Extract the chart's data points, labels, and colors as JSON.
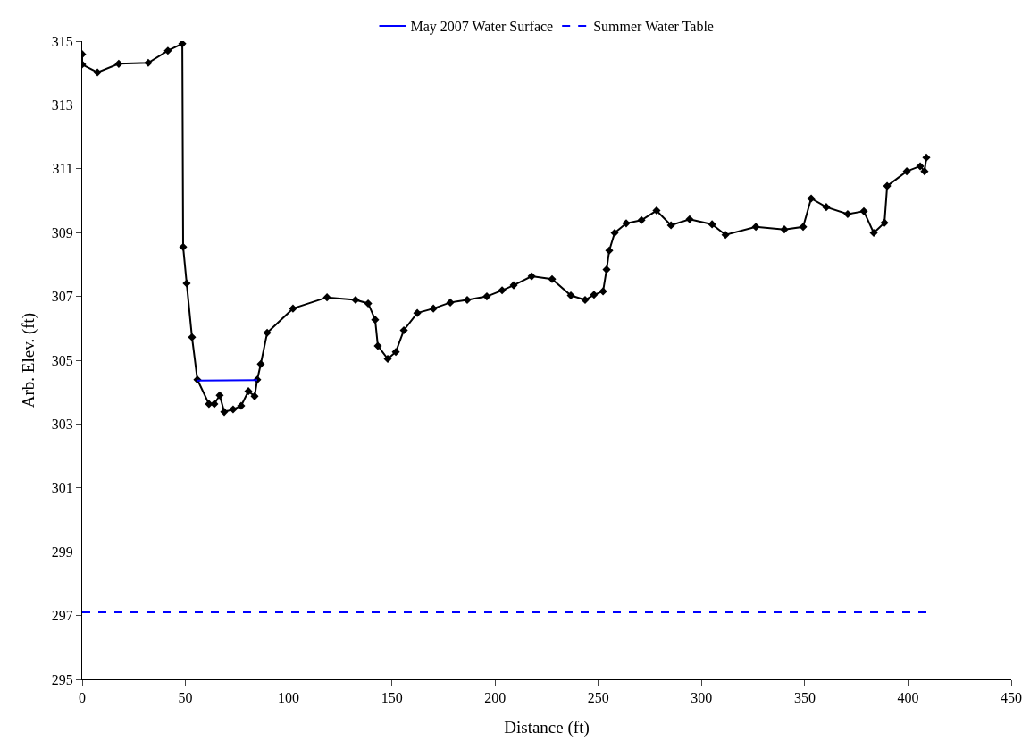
{
  "chart_data": {
    "type": "line",
    "xlabel": "Distance (ft)",
    "ylabel": "Arb. Elev. (ft)",
    "xlim": [
      0,
      450
    ],
    "xticks": [
      0,
      50,
      100,
      150,
      200,
      250,
      300,
      350,
      400,
      450
    ],
    "ylim": [
      295,
      315
    ],
    "yticks": [
      295,
      297,
      299,
      301,
      303,
      305,
      307,
      309,
      311,
      313,
      315
    ],
    "grid": false,
    "legend": "top",
    "series": [
      {
        "color": "#000000",
        "marker": "diamond",
        "line_style": "solid",
        "x": [
          0,
          0,
          7.4,
          17.7,
          32.0,
          41.5,
          48.5,
          48.9,
          50.6,
          53.2,
          55.8,
          61.4,
          64.0,
          66.6,
          68.8,
          73.1,
          77.0,
          80.5,
          83.5,
          84.8,
          86.5,
          89.6,
          102.1,
          118.6,
          132.4,
          138.5,
          141.9,
          143.2,
          148.0,
          151.9,
          155.8,
          162.3,
          170.1,
          178.3,
          186.5,
          196.0,
          203.4,
          209.0,
          217.7,
          227.6,
          236.7,
          243.6,
          247.9,
          252.3,
          254.0,
          255.3,
          257.9,
          263.5,
          270.9,
          278.2,
          285.2,
          294.2,
          305.1,
          311.6,
          326.3,
          340.1,
          349.2,
          353.1,
          360.4,
          370.8,
          378.6,
          383.4,
          388.6,
          389.9,
          399.4,
          405.9,
          408.0,
          408.9
        ],
        "values": [
          314.59,
          314.27,
          314.02,
          314.29,
          314.32,
          314.7,
          314.92,
          308.55,
          307.41,
          305.72,
          304.39,
          303.63,
          303.63,
          303.9,
          303.38,
          303.46,
          303.57,
          304.03,
          303.87,
          304.39,
          304.88,
          305.86,
          306.62,
          306.97,
          306.89,
          306.78,
          306.27,
          305.45,
          305.04,
          305.26,
          305.94,
          306.48,
          306.62,
          306.81,
          306.89,
          307.0,
          307.19,
          307.35,
          307.63,
          307.54,
          307.03,
          306.89,
          307.05,
          307.16,
          307.84,
          308.44,
          308.99,
          309.29,
          309.39,
          309.69,
          309.23,
          309.42,
          309.26,
          308.93,
          309.18,
          309.1,
          309.18,
          310.07,
          309.8,
          309.58,
          309.67,
          308.99,
          309.31,
          310.46,
          310.92,
          311.08,
          310.92,
          311.35
        ]
      },
      {
        "name": "May 2007 Water Surface",
        "color": "#0000ff",
        "marker": "none",
        "line_style": "solid",
        "x": [
          55.8,
          84.8
        ],
        "values": [
          304.36,
          304.38
        ]
      },
      {
        "name": "Summer Water Table",
        "color": "#0000ff",
        "marker": "none",
        "line_style": "dashed",
        "x": [
          0,
          409
        ],
        "values": [
          297.1,
          297.1
        ]
      }
    ]
  }
}
